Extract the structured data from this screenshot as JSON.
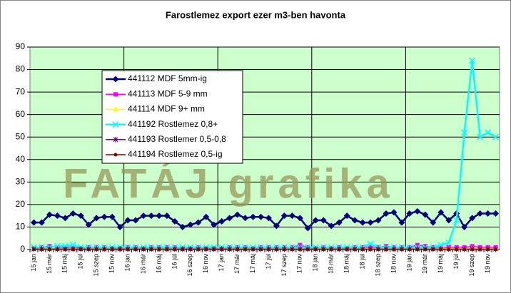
{
  "chart_data": {
    "type": "line",
    "title": "Farostlemez export ezer m3-ben havonta",
    "watermark": "FATÁJ grafika",
    "categories": [
      "15 jan",
      null,
      "15 már",
      null,
      "15 máj",
      null,
      "15 júl",
      null,
      "15 szep",
      null,
      "15 nov",
      null,
      "16 jan",
      null,
      "16 már",
      null,
      "16 máj",
      null,
      "16 júl",
      null,
      "16 szep",
      null,
      "16 nov",
      null,
      "17 jan",
      null,
      "17 már",
      null,
      "17 máj",
      null,
      "17 júl",
      null,
      "17 szep",
      null,
      "17 nov",
      null,
      "18 jan",
      null,
      "18 már",
      null,
      "18 máj",
      null,
      "18 júl",
      null,
      "18 szep",
      null,
      "18 nov",
      null,
      "19 jan",
      null,
      "19 már",
      null,
      "19 máj",
      null,
      "19 júl",
      null,
      "19 szep",
      null,
      "19 nov",
      null
    ],
    "ylim": [
      0,
      90
    ],
    "yticks": [
      0,
      10,
      20,
      30,
      40,
      50,
      60,
      70,
      80,
      90
    ],
    "grid": true,
    "xgrid_interval": 12,
    "plot_background": "#ccffcc",
    "series": [
      {
        "name": "441112 MDF 5mm-ig",
        "color": "#000080",
        "marker": "diamond",
        "values": [
          12,
          12,
          15.5,
          15,
          14,
          16,
          15,
          11,
          14,
          14.5,
          14.5,
          10,
          13,
          13,
          15,
          15,
          15,
          15,
          12.5,
          10,
          11,
          12,
          14.5,
          11,
          12.5,
          14,
          15.5,
          14,
          14.5,
          14.5,
          14,
          10.5,
          15,
          15,
          14,
          9.5,
          13,
          13,
          10.5,
          12,
          15,
          13,
          12,
          12,
          13,
          16,
          16.5,
          12,
          16,
          17,
          15.5,
          12,
          16.5,
          13,
          16,
          10,
          14,
          16,
          16,
          16
        ]
      },
      {
        "name": "441113 MDF 5-9 mm",
        "color": "#ff00ff",
        "marker": "square",
        "values": [
          0.5,
          1,
          1.5,
          1,
          1,
          1,
          0.5,
          1,
          1,
          1,
          0.5,
          0.5,
          1,
          1,
          0.5,
          1,
          1,
          1,
          1,
          0.5,
          0.5,
          1,
          0.5,
          0.5,
          0.5,
          1,
          1,
          1,
          0.5,
          1,
          1,
          1,
          1,
          1,
          2,
          1,
          0.5,
          1,
          0.5,
          1,
          0.5,
          1,
          1,
          1,
          1,
          1.5,
          1,
          1,
          1,
          2,
          1.5,
          1,
          1,
          1,
          1,
          1,
          1.5,
          1,
          1,
          1
        ]
      },
      {
        "name": "441114 MDF 9+ mm",
        "color": "#ffff00",
        "marker": "triangle",
        "values": [
          0.3,
          0.3,
          0.5,
          0.3,
          0.3,
          0.3,
          0.3,
          0.3,
          0.3,
          0.5,
          0.3,
          0.3,
          0.3,
          0.3,
          0.3,
          0.3,
          0.5,
          0.3,
          0.3,
          0.3,
          0.3,
          0.3,
          0.3,
          0.3,
          0.3,
          0.3,
          0.3,
          0.5,
          0.3,
          0.3,
          0.3,
          0.3,
          0.3,
          0.3,
          0.3,
          0.3,
          0.3,
          0.5,
          0.3,
          0.3,
          0.3,
          0.3,
          0.3,
          0.3,
          0.3,
          0.3,
          0.3,
          0.3,
          0.3,
          0.3,
          0.3,
          0.3,
          0.3,
          0.5,
          0.3,
          0.3,
          0.3,
          0.3,
          0.3,
          0.3
        ]
      },
      {
        "name": "441192 Rostlemez 0,8+",
        "color": "#00ffff",
        "marker": "x",
        "values": [
          1,
          1,
          1,
          1.5,
          1.5,
          2,
          1,
          1,
          1,
          1,
          1,
          1,
          1,
          1,
          1,
          1,
          1,
          1,
          1,
          1,
          1,
          1,
          1,
          1,
          1,
          1,
          1,
          1,
          1,
          1,
          1,
          1,
          1,
          1,
          1,
          1,
          1,
          1,
          1,
          1,
          1,
          1,
          1,
          2.5,
          1,
          1,
          1,
          1,
          1,
          1,
          1,
          1,
          2,
          3,
          13,
          52,
          84,
          50,
          52,
          50
        ]
      },
      {
        "name": "441193 Rostlemer 0,5-0,8",
        "color": "#800080",
        "marker": "star",
        "values": [
          0.2,
          0.2,
          0.2,
          0.2,
          0.2,
          0.2,
          0.2,
          0.2,
          0.2,
          0.2,
          0.2,
          0.2,
          0.2,
          0.2,
          0.2,
          0.2,
          0.2,
          0.2,
          0.2,
          0.2,
          0.2,
          0.2,
          0.2,
          0.2,
          0.2,
          0.2,
          0.2,
          0.2,
          0.2,
          0.2,
          0.2,
          0.2,
          0.2,
          0.2,
          0.2,
          0.2,
          0.2,
          0.2,
          0.2,
          0.2,
          0.2,
          0.2,
          0.2,
          0.2,
          0.2,
          0.2,
          0.2,
          0.2,
          0.2,
          0.2,
          0.2,
          0.2,
          0.2,
          0.2,
          0.2,
          0.2,
          0.2,
          0.2,
          0.2,
          0.2
        ]
      },
      {
        "name": "441194 Rostlemez 0,5-ig",
        "color": "#800000",
        "marker": "circle",
        "values": [
          0.1,
          0.1,
          0.1,
          0.1,
          0.1,
          0.1,
          0.1,
          0.1,
          0.1,
          0.1,
          0.1,
          0.1,
          0.1,
          0.1,
          0.1,
          0.1,
          0.1,
          0.1,
          0.1,
          0.1,
          0.1,
          0.1,
          0.1,
          0.1,
          0.1,
          0.1,
          0.1,
          0.1,
          0.1,
          0.1,
          0.1,
          0.1,
          0.1,
          0.1,
          0.1,
          0.1,
          0.1,
          0.1,
          0.1,
          0.1,
          0.1,
          0.1,
          0.1,
          0.1,
          0.1,
          0.1,
          0.1,
          0.1,
          0.1,
          0.1,
          0.1,
          0.1,
          0.1,
          0.1,
          0.1,
          0.1,
          0.1,
          0.1,
          0.1,
          0.1
        ]
      }
    ]
  }
}
